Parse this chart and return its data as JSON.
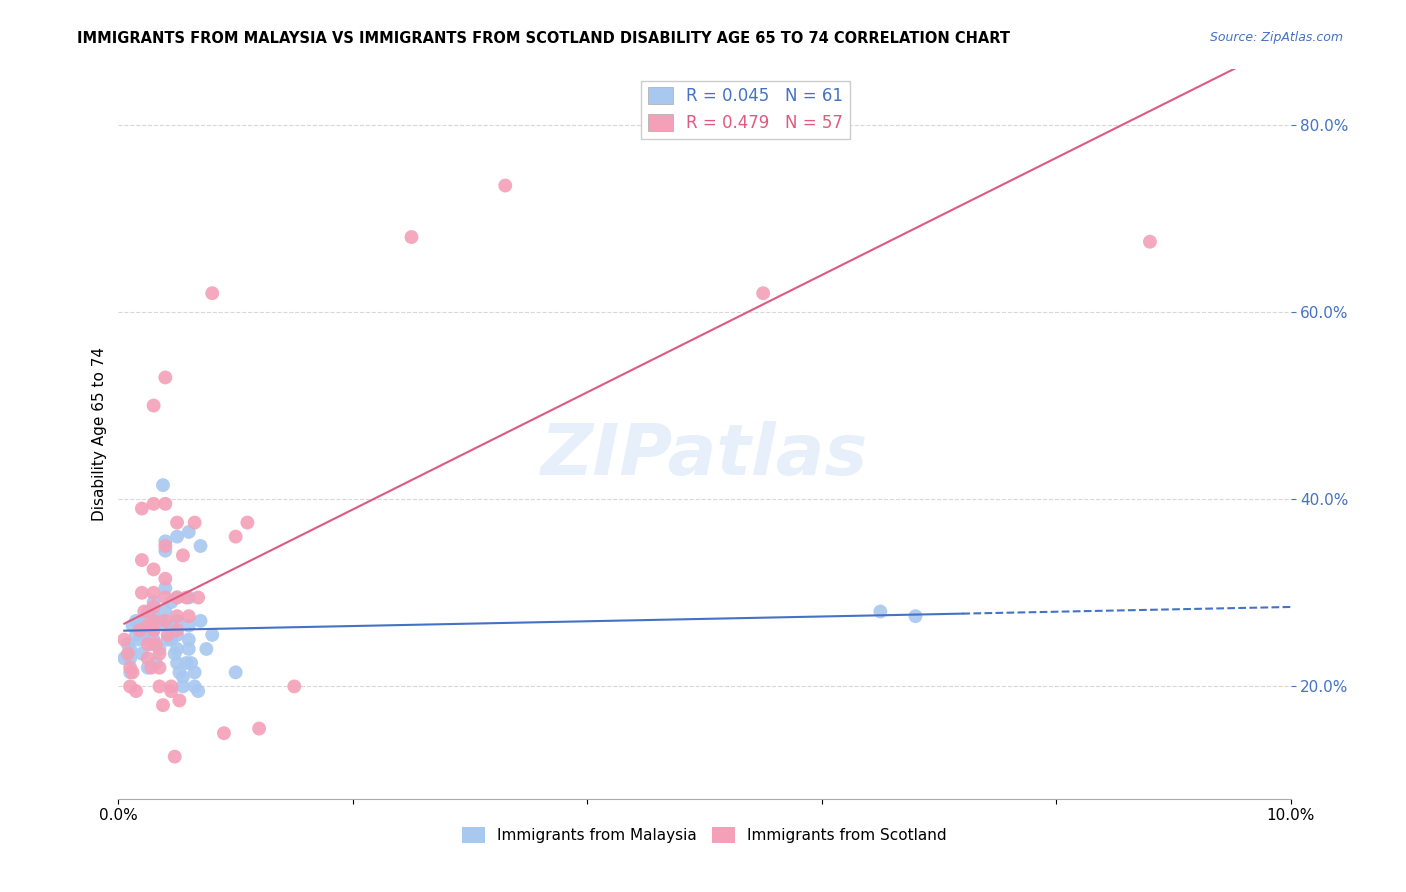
{
  "title": "IMMIGRANTS FROM MALAYSIA VS IMMIGRANTS FROM SCOTLAND DISABILITY AGE 65 TO 74 CORRELATION CHART",
  "source": "Source: ZipAtlas.com",
  "ylabel": "Disability Age 65 to 74",
  "ytick_values": [
    0.2,
    0.4,
    0.6,
    0.8
  ],
  "xlim": [
    0.0,
    0.1
  ],
  "ylim": [
    0.08,
    0.86
  ],
  "watermark": "ZIPatlas",
  "legend_entry1": {
    "label": "Immigrants from Malaysia",
    "R": "0.045",
    "N": "61",
    "color": "#a8c8f0"
  },
  "legend_entry2": {
    "label": "Immigrants from Scotland",
    "R": "0.479",
    "N": "57",
    "color": "#f4a0b8"
  },
  "malaysia_color": "#a8c8f0",
  "scotland_color": "#f4a0b8",
  "malaysia_line_color": "#4472c4",
  "scotland_line_color": "#e05a80",
  "grid_color": "#d8d8d8",
  "malaysia_points": [
    [
      0.0005,
      0.23
    ],
    [
      0.0008,
      0.245
    ],
    [
      0.001,
      0.215
    ],
    [
      0.001,
      0.23
    ],
    [
      0.001,
      0.24
    ],
    [
      0.0012,
      0.265
    ],
    [
      0.0015,
      0.255
    ],
    [
      0.0015,
      0.27
    ],
    [
      0.0018,
      0.25
    ],
    [
      0.002,
      0.235
    ],
    [
      0.002,
      0.26
    ],
    [
      0.0022,
      0.27
    ],
    [
      0.0025,
      0.255
    ],
    [
      0.0025,
      0.28
    ],
    [
      0.0025,
      0.26
    ],
    [
      0.0025,
      0.22
    ],
    [
      0.0028,
      0.245
    ],
    [
      0.003,
      0.26
    ],
    [
      0.003,
      0.275
    ],
    [
      0.003,
      0.29
    ],
    [
      0.003,
      0.25
    ],
    [
      0.0032,
      0.225
    ],
    [
      0.0035,
      0.27
    ],
    [
      0.0035,
      0.24
    ],
    [
      0.0038,
      0.415
    ],
    [
      0.004,
      0.355
    ],
    [
      0.004,
      0.345
    ],
    [
      0.004,
      0.305
    ],
    [
      0.004,
      0.28
    ],
    [
      0.004,
      0.265
    ],
    [
      0.0042,
      0.25
    ],
    [
      0.0045,
      0.29
    ],
    [
      0.0045,
      0.265
    ],
    [
      0.0045,
      0.25
    ],
    [
      0.0048,
      0.235
    ],
    [
      0.005,
      0.36
    ],
    [
      0.005,
      0.295
    ],
    [
      0.005,
      0.27
    ],
    [
      0.005,
      0.255
    ],
    [
      0.005,
      0.24
    ],
    [
      0.005,
      0.225
    ],
    [
      0.0052,
      0.215
    ],
    [
      0.0055,
      0.2
    ],
    [
      0.0055,
      0.21
    ],
    [
      0.0058,
      0.225
    ],
    [
      0.006,
      0.365
    ],
    [
      0.006,
      0.295
    ],
    [
      0.006,
      0.265
    ],
    [
      0.006,
      0.25
    ],
    [
      0.006,
      0.24
    ],
    [
      0.0062,
      0.225
    ],
    [
      0.0065,
      0.215
    ],
    [
      0.0065,
      0.2
    ],
    [
      0.0068,
      0.195
    ],
    [
      0.007,
      0.35
    ],
    [
      0.007,
      0.27
    ],
    [
      0.0075,
      0.24
    ],
    [
      0.008,
      0.255
    ],
    [
      0.01,
      0.215
    ],
    [
      0.065,
      0.28
    ],
    [
      0.068,
      0.275
    ]
  ],
  "scotland_points": [
    [
      0.0005,
      0.25
    ],
    [
      0.0008,
      0.235
    ],
    [
      0.001,
      0.22
    ],
    [
      0.001,
      0.2
    ],
    [
      0.0012,
      0.215
    ],
    [
      0.0015,
      0.195
    ],
    [
      0.0018,
      0.26
    ],
    [
      0.002,
      0.39
    ],
    [
      0.002,
      0.335
    ],
    [
      0.002,
      0.3
    ],
    [
      0.0022,
      0.28
    ],
    [
      0.0025,
      0.265
    ],
    [
      0.0025,
      0.245
    ],
    [
      0.0025,
      0.23
    ],
    [
      0.0028,
      0.22
    ],
    [
      0.003,
      0.5
    ],
    [
      0.003,
      0.395
    ],
    [
      0.003,
      0.325
    ],
    [
      0.003,
      0.3
    ],
    [
      0.003,
      0.285
    ],
    [
      0.003,
      0.27
    ],
    [
      0.003,
      0.26
    ],
    [
      0.0032,
      0.245
    ],
    [
      0.0035,
      0.235
    ],
    [
      0.0035,
      0.22
    ],
    [
      0.0035,
      0.2
    ],
    [
      0.0038,
      0.18
    ],
    [
      0.004,
      0.53
    ],
    [
      0.004,
      0.395
    ],
    [
      0.004,
      0.35
    ],
    [
      0.004,
      0.315
    ],
    [
      0.004,
      0.295
    ],
    [
      0.004,
      0.27
    ],
    [
      0.0042,
      0.255
    ],
    [
      0.0045,
      0.2
    ],
    [
      0.0045,
      0.195
    ],
    [
      0.0048,
      0.125
    ],
    [
      0.005,
      0.375
    ],
    [
      0.005,
      0.295
    ],
    [
      0.005,
      0.275
    ],
    [
      0.005,
      0.26
    ],
    [
      0.0052,
      0.185
    ],
    [
      0.0055,
      0.34
    ],
    [
      0.0058,
      0.295
    ],
    [
      0.006,
      0.275
    ],
    [
      0.0065,
      0.375
    ],
    [
      0.0068,
      0.295
    ],
    [
      0.008,
      0.62
    ],
    [
      0.009,
      0.15
    ],
    [
      0.01,
      0.36
    ],
    [
      0.011,
      0.375
    ],
    [
      0.012,
      0.155
    ],
    [
      0.015,
      0.2
    ],
    [
      0.025,
      0.68
    ],
    [
      0.033,
      0.735
    ],
    [
      0.055,
      0.62
    ],
    [
      0.088,
      0.675
    ]
  ]
}
